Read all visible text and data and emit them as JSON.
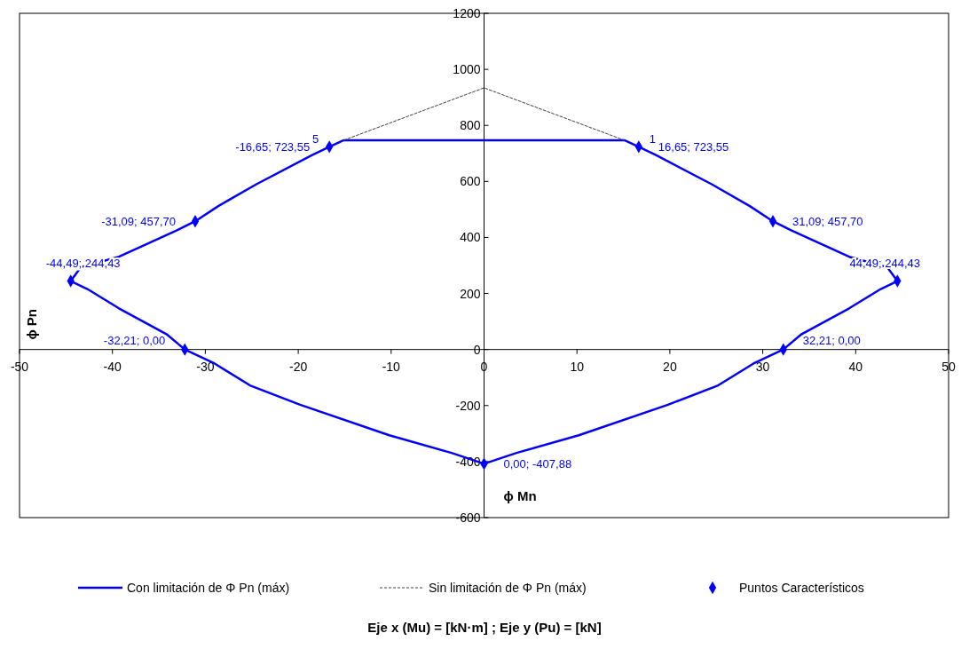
{
  "chart_data": {
    "type": "line",
    "xlabel": "ϕ Mn",
    "ylabel": "ϕ Pn",
    "xlim": [
      -50,
      50
    ],
    "xticks": [
      -50,
      -40,
      -30,
      -20,
      -10,
      0,
      10,
      20,
      30,
      40,
      50
    ],
    "ylim": [
      -600,
      1200
    ],
    "yticks": [
      -600,
      -400,
      -200,
      0,
      200,
      400,
      600,
      800,
      1000,
      1200
    ],
    "grid": false,
    "legend": "bottom",
    "series": [
      {
        "name": "Con limitación de Φ Pn (máx)",
        "type": "line",
        "color": "#0000ff",
        "line_style": "solid",
        "x": [
          -44.49,
          -43.4,
          -39.3,
          -33.1,
          -31.09,
          -28.6,
          -24.5,
          -18.5,
          -16.65,
          -15.1,
          15.1,
          16.65,
          18.5,
          24.5,
          28.6,
          31.09,
          33.1,
          39.3,
          43.4,
          44.49,
          null,
          -44.49,
          -42.7,
          -39.3,
          -34.1,
          -32.21,
          -29.0,
          -25.2,
          -19.8,
          -10.2,
          -3.5,
          0,
          3.5,
          10.2,
          19.8,
          25.2,
          29.0,
          32.21,
          34.1,
          39.3,
          42.7,
          44.49
        ],
        "values": [
          244.43,
          294,
          331,
          425,
          457.7,
          512,
          590,
          694,
          723.55,
          747,
          747,
          723.55,
          694,
          590,
          512,
          457.7,
          425,
          331,
          294,
          244.43,
          null,
          244.43,
          216,
          147,
          53,
          0,
          -50,
          -128,
          -197,
          -306,
          -369,
          -407.88,
          -369,
          -306,
          -197,
          -128,
          -50,
          0,
          53,
          147,
          216,
          244.43
        ]
      },
      {
        "name": "Sin limitación de Φ Pn (máx)",
        "color": "#404040",
        "line_style": "dashed",
        "x": [
          -15.1,
          0,
          15.1
        ],
        "values": [
          747,
          934,
          747
        ]
      },
      {
        "name": "Puntos Característicos",
        "type": "scatter",
        "color": "#0000ff",
        "marker": "diamond",
        "x": [
          16.65,
          31.09,
          44.49,
          32.21,
          0,
          -32.21,
          -44.49,
          -31.09,
          -16.65
        ],
        "values": [
          723.55,
          457.7,
          244.43,
          0,
          -407.88,
          0,
          244.43,
          457.7,
          723.55
        ],
        "value_labels": [
          "16,65; 723,55",
          "31,09; 457,70",
          "44,49; 244,43",
          "32,21; 0,00",
          "0,00; -407,88",
          "-32,21; 0,00",
          "-44,49; 244,43",
          "-31,09; 457,70",
          "-16,65; 723,55"
        ]
      }
    ],
    "annotations": [
      {
        "text": "1",
        "x": 16.65,
        "y": 723.55
      },
      {
        "text": "5",
        "x": -16.65,
        "y": 723.55
      },
      "Eje x (Mu) = [kN·m]  ;  Eje y (Pu) = [kN]"
    ]
  }
}
